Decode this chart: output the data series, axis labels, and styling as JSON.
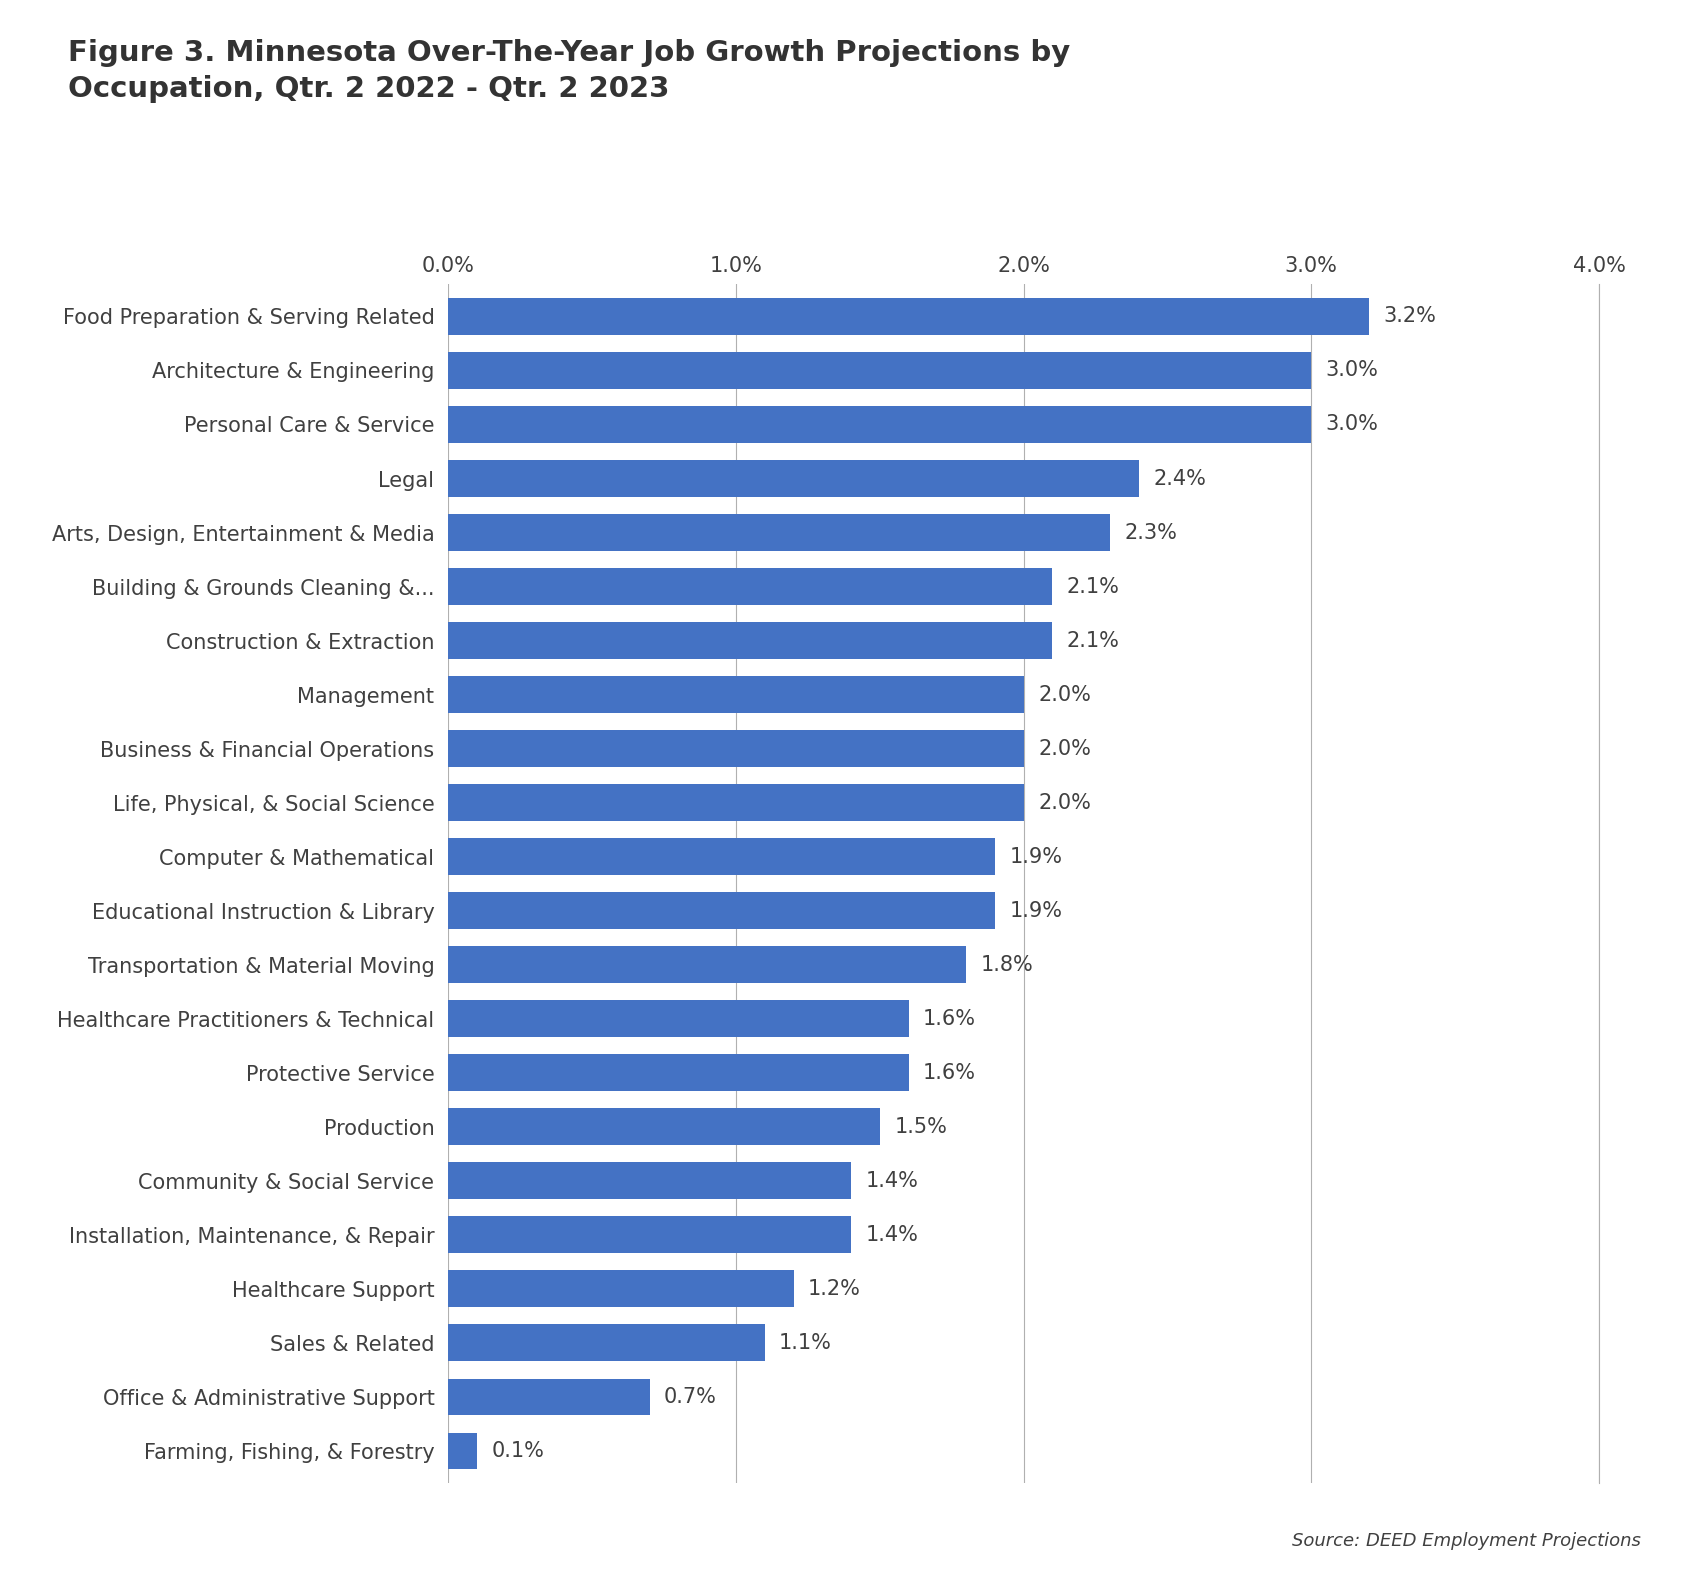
{
  "title": "Figure 3. Minnesota Over-The-Year Job Growth Projections by\nOccupation, Qtr. 2 2022 - Qtr. 2 2023",
  "categories": [
    "Food Preparation & Serving Related",
    "Architecture & Engineering",
    "Personal Care & Service",
    "Legal",
    "Arts, Design, Entertainment & Media",
    "Building & Grounds Cleaning &...",
    "Construction & Extraction",
    "Management",
    "Business & Financial Operations",
    "Life, Physical, & Social Science",
    "Computer & Mathematical",
    "Educational Instruction & Library",
    "Transportation & Material Moving",
    "Healthcare Practitioners & Technical",
    "Protective Service",
    "Production",
    "Community & Social Service",
    "Installation, Maintenance, & Repair",
    "Healthcare Support",
    "Sales & Related",
    "Office & Administrative Support",
    "Farming, Fishing, & Forestry"
  ],
  "values": [
    3.2,
    3.0,
    3.0,
    2.4,
    2.3,
    2.1,
    2.1,
    2.0,
    2.0,
    2.0,
    1.9,
    1.9,
    1.8,
    1.6,
    1.6,
    1.5,
    1.4,
    1.4,
    1.2,
    1.1,
    0.7,
    0.1
  ],
  "labels": [
    "3.2%",
    "3.0%",
    "3.0%",
    "2.4%",
    "2.3%",
    "2.1%",
    "2.1%",
    "2.0%",
    "2.0%",
    "2.0%",
    "1.9%",
    "1.9%",
    "1.8%",
    "1.6%",
    "1.6%",
    "1.5%",
    "1.4%",
    "1.4%",
    "1.2%",
    "1.1%",
    "0.7%",
    "0.1%"
  ],
  "bar_color": "#4472C4",
  "background_color": "#ffffff",
  "title_fontsize": 21,
  "label_fontsize": 15,
  "tick_fontsize": 15,
  "source_text": "Source: DEED Employment Projections",
  "xlim": [
    0,
    4.0
  ],
  "xticks": [
    0.0,
    1.0,
    2.0,
    3.0,
    4.0
  ],
  "xtick_labels": [
    "0.0%",
    "1.0%",
    "2.0%",
    "3.0%",
    "4.0%"
  ],
  "text_color": "#404040",
  "title_color": "#333333",
  "grid_color": "#b0b0b0"
}
